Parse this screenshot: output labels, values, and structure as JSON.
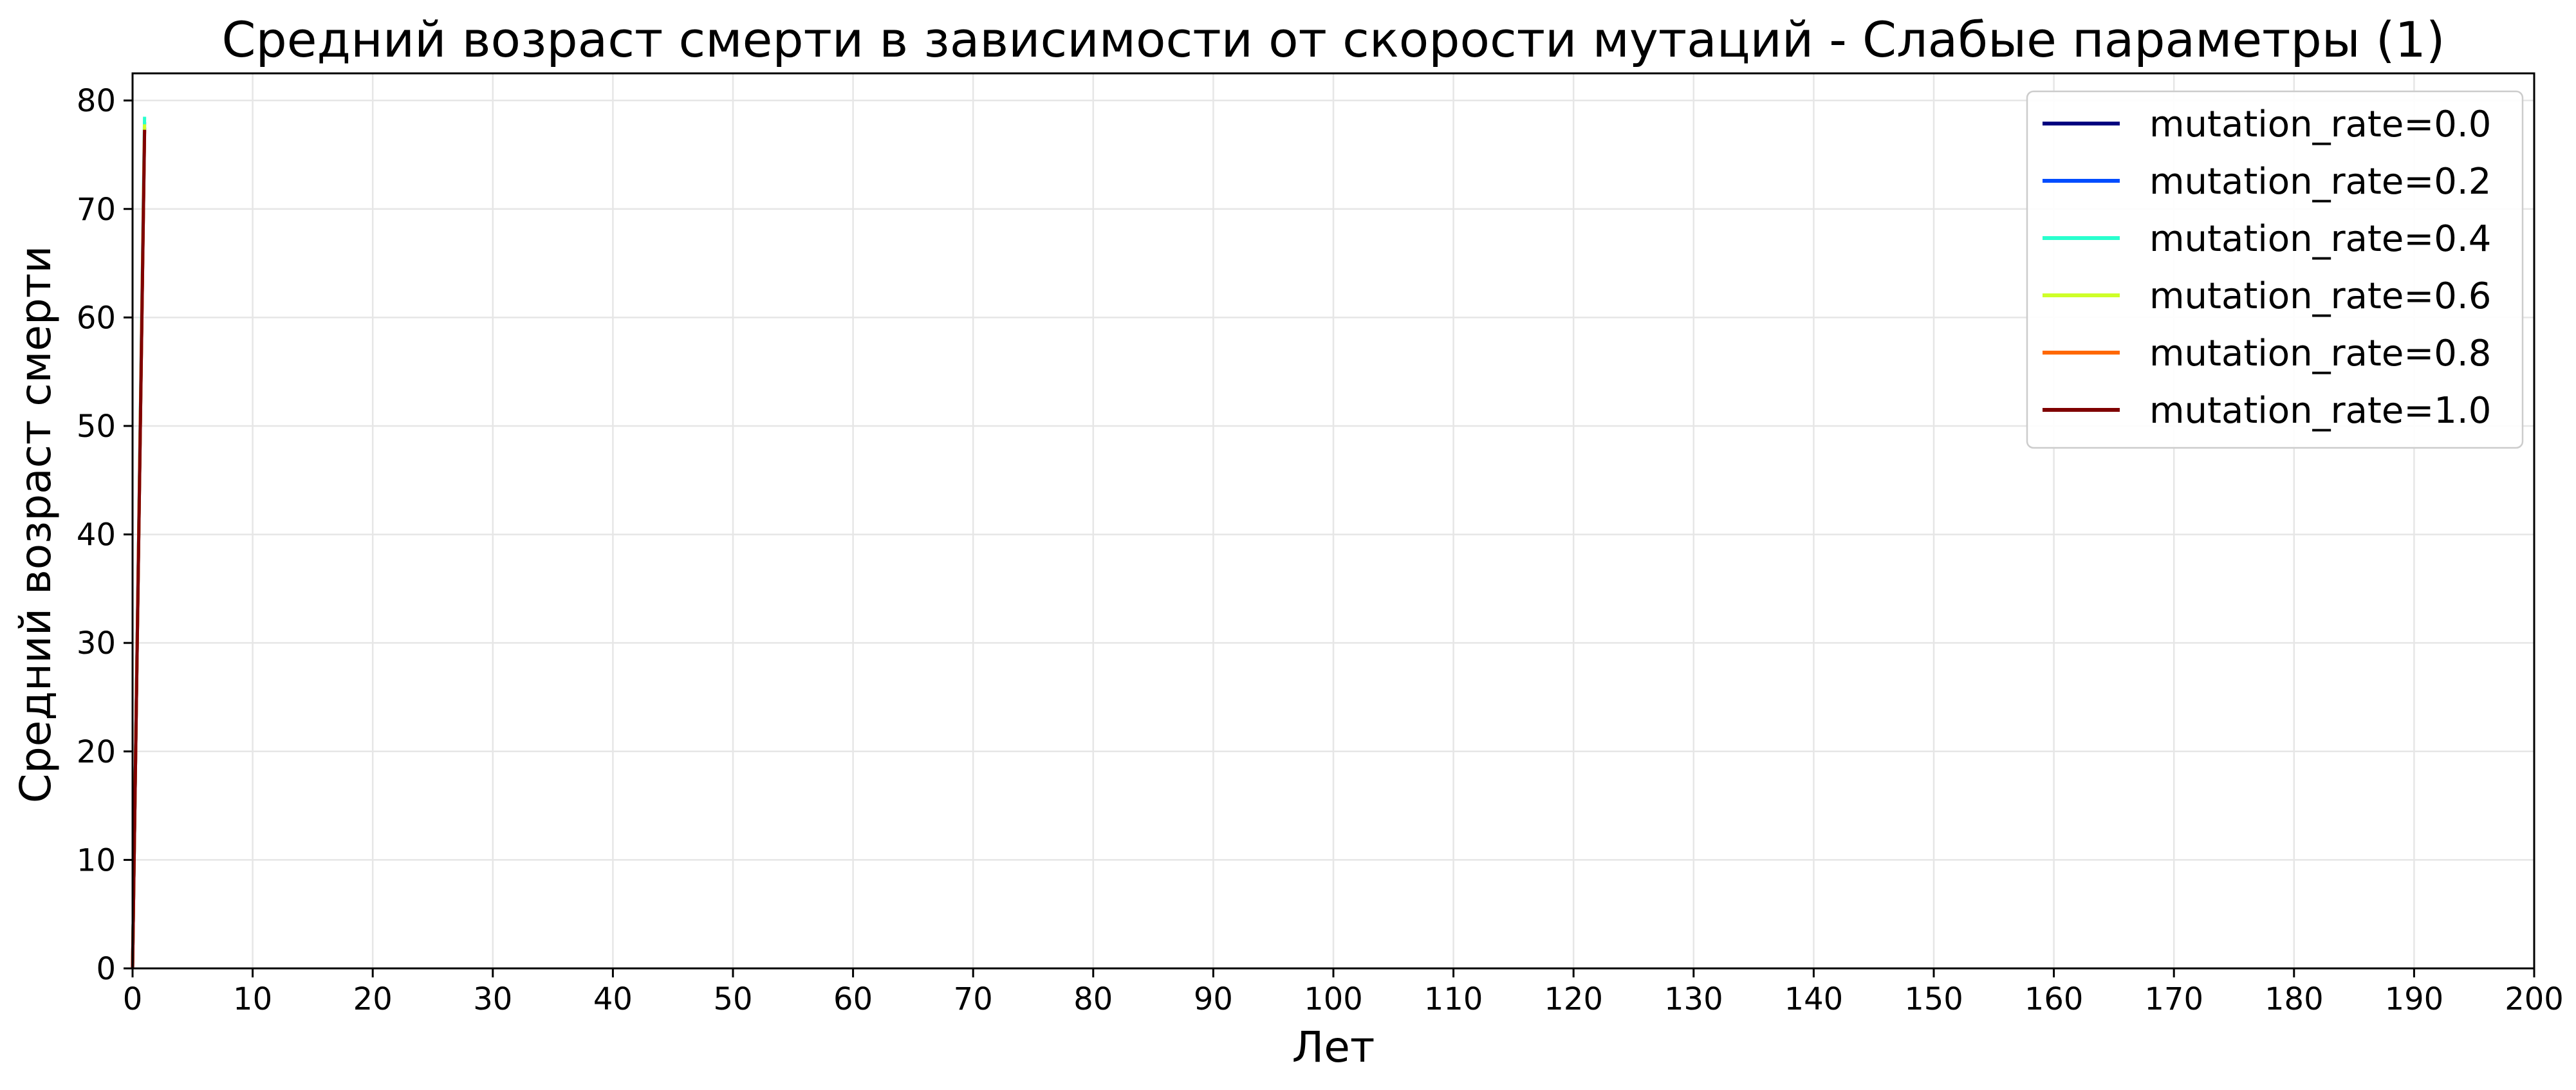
{
  "chart_data": {
    "type": "line",
    "title": "Средний возраст смерти в зависимости от скорости мутаций - Слабые параметры (1)",
    "xlabel": "Лет",
    "ylabel": "Средний возраст смерти",
    "xlim": [
      0,
      200
    ],
    "ylim": [
      0,
      82.5
    ],
    "xticks": [
      0,
      10,
      20,
      30,
      40,
      50,
      60,
      70,
      80,
      90,
      100,
      110,
      120,
      130,
      140,
      150,
      160,
      170,
      180,
      190,
      200
    ],
    "yticks": [
      0,
      10,
      20,
      30,
      40,
      50,
      60,
      70,
      80
    ],
    "grid": true,
    "legend_position": "top-right",
    "series": [
      {
        "name": "mutation_rate=0.0",
        "color": "#00007f",
        "x": [
          0,
          1
        ],
        "y": [
          0,
          77.5
        ]
      },
      {
        "name": "mutation_rate=0.2",
        "color": "#004cff",
        "x": [
          0,
          1
        ],
        "y": [
          0,
          78.0
        ]
      },
      {
        "name": "mutation_rate=0.4",
        "color": "#29ffce",
        "x": [
          0,
          1
        ],
        "y": [
          0,
          78.5
        ]
      },
      {
        "name": "mutation_rate=0.6",
        "color": "#ceff29",
        "x": [
          0,
          1
        ],
        "y": [
          0,
          77.8
        ]
      },
      {
        "name": "mutation_rate=0.8",
        "color": "#ff6800",
        "x": [
          0,
          1
        ],
        "y": [
          0,
          77.2
        ]
      },
      {
        "name": "mutation_rate=1.0",
        "color": "#7f0000",
        "x": [
          0,
          1
        ],
        "y": [
          0,
          77.3
        ]
      }
    ]
  }
}
